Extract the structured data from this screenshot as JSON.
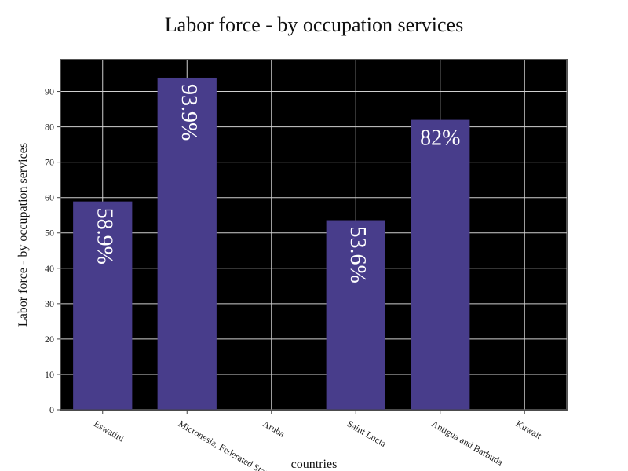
{
  "chart_data": {
    "type": "bar",
    "title": "Labor force - by occupation services",
    "xlabel": "countries",
    "ylabel": "Labor force - by occupation services",
    "categories": [
      "Eswatini",
      "Micronesia, Federated States of",
      "Aruba",
      "Saint Lucia",
      "Antigua and Barbuda",
      "Kuwait"
    ],
    "values": [
      58.9,
      93.9,
      null,
      53.6,
      82,
      null
    ],
    "value_labels": [
      "58.9%",
      "93.9%",
      "",
      "53.6%",
      "82%",
      ""
    ],
    "ylim": [
      0,
      99
    ],
    "yticks": [
      0,
      10,
      20,
      30,
      40,
      50,
      60,
      70,
      80,
      90
    ],
    "grid": true,
    "colors": {
      "bar": "#483D8B",
      "plot_background": "#000000",
      "grid": "#d0d0d0",
      "label_text": "#ffffff"
    }
  }
}
